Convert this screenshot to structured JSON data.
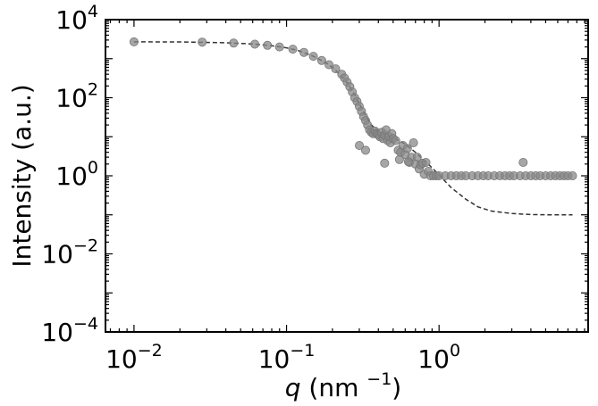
{
  "chart_data": {
    "type": "scatter",
    "title": "",
    "xlabel": {
      "var": "q",
      "rest": " (nm ",
      "exp": "−1",
      "close": ")"
    },
    "ylabel": "Intensity (a.u.)",
    "xscale": "log",
    "yscale": "log",
    "xlim": [
      0.0065,
      9.5
    ],
    "ylim": [
      0.0001,
      10000
    ],
    "x_ticks": [
      {
        "value": 0.01,
        "base": "10",
        "exp": "−2"
      },
      {
        "value": 0.1,
        "base": "10",
        "exp": "−1"
      },
      {
        "value": 1,
        "base": "10",
        "exp": "0"
      }
    ],
    "y_ticks": [
      {
        "value": 0.0001,
        "base": "10",
        "exp": "−4"
      },
      {
        "value": 0.01,
        "base": "10",
        "exp": "−2"
      },
      {
        "value": 1,
        "base": "10",
        "exp": "0"
      },
      {
        "value": 100,
        "base": "10",
        "exp": "2"
      },
      {
        "value": 10000,
        "base": "10",
        "exp": "4"
      }
    ],
    "grid": false,
    "legend": "none",
    "colors": {
      "points": "#888888",
      "fit": "#333333",
      "axes": "#000000"
    },
    "series": [
      {
        "style": "markers",
        "points": [
          [
            0.01,
            2700
          ],
          [
            0.028,
            2650
          ],
          [
            0.045,
            2500
          ],
          [
            0.062,
            2350
          ],
          [
            0.075,
            2200
          ],
          [
            0.09,
            2000
          ],
          [
            0.11,
            1750
          ],
          [
            0.13,
            1450
          ],
          [
            0.15,
            1150
          ],
          [
            0.17,
            900
          ],
          [
            0.19,
            700
          ],
          [
            0.21,
            550
          ],
          [
            0.23,
            400
          ],
          [
            0.24,
            320
          ],
          [
            0.25,
            250
          ],
          [
            0.26,
            190
          ],
          [
            0.27,
            140
          ],
          [
            0.28,
            100
          ],
          [
            0.29,
            80
          ],
          [
            0.3,
            60
          ],
          [
            0.31,
            45
          ],
          [
            0.32,
            33
          ],
          [
            0.33,
            26
          ],
          [
            0.34,
            20
          ],
          [
            0.35,
            15
          ],
          [
            0.36,
            13
          ],
          [
            0.37,
            12
          ],
          [
            0.38,
            14
          ],
          [
            0.39,
            12
          ],
          [
            0.4,
            11
          ],
          [
            0.41,
            10
          ],
          [
            0.42,
            13
          ],
          [
            0.43,
            9
          ],
          [
            0.44,
            11
          ],
          [
            0.45,
            15
          ],
          [
            0.46,
            8
          ],
          [
            0.47,
            10
          ],
          [
            0.48,
            7
          ],
          [
            0.49,
            12
          ],
          [
            0.5,
            9
          ],
          [
            0.52,
            8
          ],
          [
            0.54,
            4.5
          ],
          [
            0.56,
            4.0
          ],
          [
            0.58,
            6
          ],
          [
            0.6,
            3.5
          ],
          [
            0.62,
            5
          ],
          [
            0.64,
            2.2
          ],
          [
            0.66,
            3
          ],
          [
            0.68,
            7
          ],
          [
            0.7,
            2
          ],
          [
            0.72,
            3
          ],
          [
            0.74,
            1.5
          ],
          [
            0.76,
            1.9
          ],
          [
            0.78,
            2.1
          ],
          [
            0.8,
            1.1
          ],
          [
            0.82,
            2.2
          ],
          [
            0.85,
            1.3
          ],
          [
            0.88,
            1.0
          ],
          [
            0.92,
            1.0
          ],
          [
            0.96,
            1.0
          ],
          [
            1.0,
            1.0
          ],
          [
            1.1,
            1.0
          ],
          [
            1.2,
            1.0
          ],
          [
            1.3,
            1.0
          ],
          [
            1.4,
            1.0
          ],
          [
            1.5,
            1.0
          ],
          [
            1.65,
            1.0
          ],
          [
            1.8,
            1.0
          ],
          [
            1.95,
            1.0
          ],
          [
            2.1,
            1.0
          ],
          [
            2.3,
            1.0
          ],
          [
            2.5,
            1.0
          ],
          [
            2.7,
            1.0
          ],
          [
            2.9,
            1.0
          ],
          [
            3.1,
            1.0
          ],
          [
            3.4,
            1.0
          ],
          [
            3.56,
            2.2
          ],
          [
            3.7,
            1.0
          ],
          [
            4.0,
            1.0
          ],
          [
            4.3,
            1.0
          ],
          [
            4.6,
            1.0
          ],
          [
            5.0,
            1.0
          ],
          [
            5.4,
            1.0
          ],
          [
            5.8,
            1.0
          ],
          [
            6.2,
            1.0
          ],
          [
            6.6,
            1.0
          ],
          [
            7.0,
            1.0
          ],
          [
            7.5,
            1.0
          ],
          [
            0.33,
            4.5
          ],
          [
            0.3,
            6
          ],
          [
            0.44,
            2.1
          ],
          [
            0.55,
            2.6
          ],
          [
            0.63,
            2.3
          ]
        ]
      },
      {
        "style": "dashed-line",
        "points": [
          [
            0.01,
            2700
          ],
          [
            0.02,
            2680
          ],
          [
            0.04,
            2560
          ],
          [
            0.06,
            2380
          ],
          [
            0.08,
            2150
          ],
          [
            0.1,
            1900
          ],
          [
            0.12,
            1600
          ],
          [
            0.15,
            1150
          ],
          [
            0.18,
            800
          ],
          [
            0.2,
            600
          ],
          [
            0.22,
            420
          ],
          [
            0.25,
            240
          ],
          [
            0.28,
            120
          ],
          [
            0.3,
            70
          ],
          [
            0.33,
            35
          ],
          [
            0.36,
            20
          ],
          [
            0.4,
            14
          ],
          [
            0.45,
            11
          ],
          [
            0.5,
            9.5
          ],
          [
            0.6,
            6.5
          ],
          [
            0.7,
            4.0
          ],
          [
            0.8,
            2.5
          ],
          [
            0.9,
            1.6
          ],
          [
            1.0,
            1.05
          ],
          [
            1.2,
            0.5
          ],
          [
            1.5,
            0.25
          ],
          [
            1.8,
            0.16
          ],
          [
            2.2,
            0.125
          ],
          [
            3.0,
            0.108
          ],
          [
            4.0,
            0.102
          ],
          [
            5.5,
            0.1
          ],
          [
            7.5,
            0.1
          ]
        ]
      }
    ]
  }
}
